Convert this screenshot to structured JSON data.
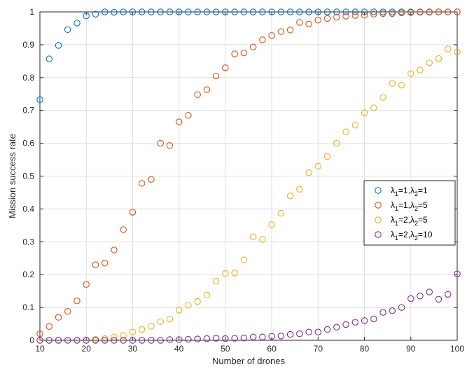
{
  "chart_data": {
    "type": "scatter",
    "title": "",
    "xlabel": "Number of drones",
    "ylabel": "Mission success rate",
    "xlim": [
      10,
      100
    ],
    "ylim": [
      0,
      1
    ],
    "xticks": [
      "10",
      "20",
      "30",
      "40",
      "50",
      "60",
      "70",
      "80",
      "90",
      "100"
    ],
    "yticks": [
      "0",
      "0.1",
      "0.2",
      "0.3",
      "0.4",
      "0.5",
      "0.6",
      "0.7",
      "0.8",
      "0.9",
      "1"
    ],
    "grid": true,
    "legend_position": "right",
    "x": [
      10,
      12,
      14,
      16,
      18,
      20,
      22,
      24,
      26,
      28,
      30,
      32,
      34,
      36,
      38,
      40,
      42,
      44,
      46,
      48,
      50,
      52,
      54,
      56,
      58,
      60,
      62,
      64,
      66,
      68,
      70,
      72,
      74,
      76,
      78,
      80,
      82,
      84,
      86,
      88,
      90,
      92,
      94,
      96,
      98,
      100
    ],
    "series": [
      {
        "name": "λ1=1,λ2=1",
        "legend": {
          "a_sub": "1",
          "a_val": "=1,",
          "b_sub": "2",
          "b_val": "=1"
        },
        "color": "#0072BD",
        "values": [
          0.733,
          0.857,
          0.898,
          0.946,
          0.966,
          0.988,
          0.993,
          1,
          0.999,
          1,
          1,
          1,
          1,
          1,
          1,
          1,
          1,
          1,
          1,
          1,
          1,
          1,
          1,
          1,
          1,
          1,
          1,
          1,
          1,
          1,
          1,
          1,
          1,
          1,
          1,
          1,
          1,
          1,
          1,
          1,
          1,
          1,
          1,
          1,
          1,
          1
        ]
      },
      {
        "name": "λ1=1,λ2=5",
        "legend": {
          "a_sub": "1",
          "a_val": "=1,",
          "b_sub": "2",
          "b_val": "=5"
        },
        "color": "#D95319",
        "values": [
          0.02,
          0.042,
          0.07,
          0.088,
          0.12,
          0.17,
          0.23,
          0.235,
          0.275,
          0.337,
          0.39,
          0.478,
          0.49,
          0.6,
          0.593,
          0.665,
          0.685,
          0.748,
          0.763,
          0.805,
          0.83,
          0.872,
          0.875,
          0.893,
          0.915,
          0.928,
          0.94,
          0.945,
          0.968,
          0.963,
          0.975,
          0.98,
          0.984,
          0.987,
          0.989,
          0.99,
          0.993,
          0.995,
          0.995,
          0.997,
          0.998,
          0.999,
          0.999,
          1,
          1,
          1
        ]
      },
      {
        "name": "λ1=2,λ2=5",
        "legend": {
          "a_sub": "1",
          "a_val": "=2,",
          "b_sub": "2",
          "b_val": "=5"
        },
        "color": "#EDB120",
        "values": [
          0,
          0,
          0,
          0,
          0,
          0,
          0.003,
          0.005,
          0.01,
          0.015,
          0.025,
          0.033,
          0.043,
          0.057,
          0.065,
          0.092,
          0.107,
          0.118,
          0.138,
          0.18,
          0.203,
          0.205,
          0.245,
          0.315,
          0.307,
          0.352,
          0.387,
          0.44,
          0.46,
          0.51,
          0.53,
          0.56,
          0.6,
          0.635,
          0.655,
          0.693,
          0.708,
          0.74,
          0.782,
          0.777,
          0.812,
          0.823,
          0.845,
          0.858,
          0.887,
          0.878
        ]
      },
      {
        "name": "λ1=2,λ2=10",
        "legend": {
          "a_sub": "1",
          "a_val": "=2,",
          "b_sub": "2",
          "b_val": "=10"
        },
        "color": "#7E2F8E",
        "values": [
          0,
          0,
          0,
          0,
          0,
          0,
          0,
          0,
          0,
          0,
          0,
          0,
          0,
          0,
          0.002,
          0.002,
          0.003,
          0.004,
          0.005,
          0.006,
          0.005,
          0.006,
          0.007,
          0.01,
          0.01,
          0.012,
          0.013,
          0.018,
          0.02,
          0.025,
          0.025,
          0.033,
          0.04,
          0.048,
          0.055,
          0.06,
          0.065,
          0.085,
          0.09,
          0.1,
          0.127,
          0.135,
          0.147,
          0.125,
          0.14,
          0.202
        ]
      }
    ]
  }
}
